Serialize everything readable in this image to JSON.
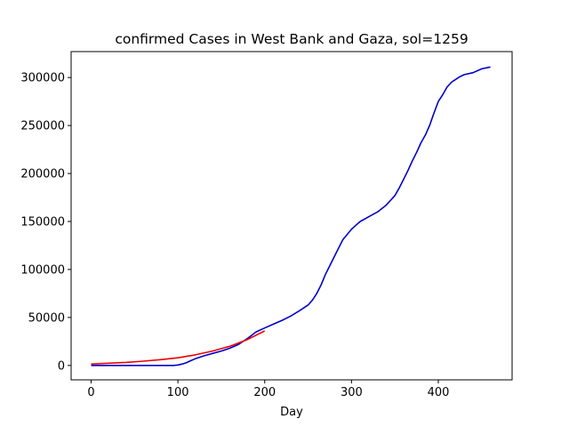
{
  "chart_data": {
    "type": "line",
    "title": "confirmed Cases in West Bank and Gaza, sol=1259",
    "xlabel": "Day",
    "ylabel": "",
    "xlim": [
      -23,
      485
    ],
    "ylim": [
      -15000,
      327000
    ],
    "x_ticks": [
      0,
      100,
      200,
      300,
      400
    ],
    "y_ticks": [
      0,
      50000,
      100000,
      150000,
      200000,
      250000,
      300000
    ],
    "grid": false,
    "legend": "none",
    "series": [
      {
        "color": "#0000cc",
        "x": [
          0,
          20,
          40,
          60,
          80,
          95,
          100,
          105,
          110,
          115,
          120,
          130,
          140,
          150,
          160,
          170,
          180,
          190,
          200,
          210,
          220,
          230,
          240,
          250,
          255,
          260,
          265,
          270,
          275,
          280,
          285,
          290,
          300,
          310,
          320,
          330,
          340,
          350,
          355,
          360,
          365,
          370,
          375,
          380,
          385,
          390,
          395,
          400,
          405,
          410,
          415,
          420,
          425,
          430,
          440,
          450,
          460
        ],
        "y": [
          0,
          0,
          0,
          0,
          0,
          0,
          500,
          1500,
          3000,
          5000,
          7000,
          10000,
          12500,
          15000,
          18000,
          22000,
          28000,
          35000,
          39000,
          43000,
          47000,
          51500,
          57000,
          63000,
          68000,
          75000,
          84000,
          95000,
          104000,
          113000,
          122000,
          131000,
          142000,
          150000,
          155000,
          160000,
          167000,
          177000,
          185000,
          194000,
          203000,
          213000,
          222000,
          232000,
          240000,
          250000,
          263000,
          275000,
          282000,
          290000,
          295000,
          298000,
          301000,
          303000,
          305000,
          309000,
          311000
        ]
      },
      {
        "color": "#ee0000",
        "x": [
          0,
          20,
          40,
          60,
          80,
          100,
          120,
          140,
          160,
          180,
          200
        ],
        "y": [
          1500,
          2300,
          3200,
          4500,
          6000,
          8000,
          11000,
          15000,
          20000,
          27000,
          36000
        ]
      }
    ]
  }
}
